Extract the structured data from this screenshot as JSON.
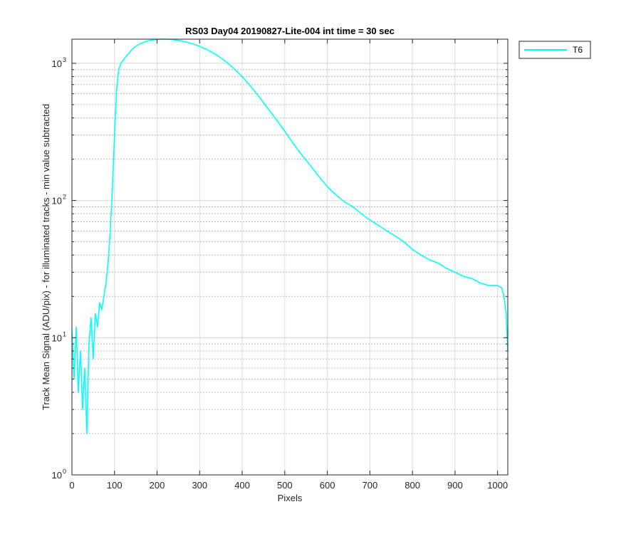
{
  "chart_data": {
    "type": "line",
    "title": "RS03 Day04 20190827-Lite-004 int time = 30 sec",
    "xlabel": "Pixels",
    "ylabel": "Track Mean Signal (ADU/pix) - for illuminated tracks - min value subtracted",
    "xlim": [
      0,
      1024
    ],
    "ylim": [
      1,
      1500
    ],
    "yscale": "log",
    "grid": true,
    "legend_position": "outside-top-right",
    "x_ticks": [
      "0",
      "100",
      "200",
      "300",
      "400",
      "500",
      "600",
      "700",
      "800",
      "900",
      "1000"
    ],
    "y_tick_bases": [
      "10",
      "10",
      "10",
      "10"
    ],
    "y_tick_exponents": [
      "0",
      "1",
      "2",
      "3"
    ],
    "series": [
      {
        "name": "T6",
        "color": "#00ffff",
        "x": [
          0,
          5,
          10,
          15,
          20,
          25,
          30,
          35,
          40,
          45,
          50,
          55,
          60,
          65,
          70,
          75,
          80,
          85,
          90,
          95,
          100,
          105,
          110,
          115,
          120,
          130,
          140,
          150,
          160,
          170,
          180,
          190,
          200,
          210,
          220,
          230,
          240,
          250,
          260,
          280,
          300,
          320,
          340,
          360,
          380,
          400,
          420,
          440,
          460,
          480,
          500,
          520,
          540,
          560,
          580,
          600,
          620,
          640,
          660,
          680,
          700,
          720,
          740,
          760,
          780,
          800,
          820,
          840,
          860,
          880,
          900,
          920,
          940,
          960,
          980,
          1000,
          1010,
          1015,
          1020,
          1024
        ],
        "y": [
          11,
          5,
          12,
          4,
          8,
          3,
          6,
          2,
          9,
          14,
          7,
          15,
          12,
          18,
          16,
          20,
          25,
          35,
          60,
          120,
          300,
          650,
          900,
          1000,
          1050,
          1150,
          1250,
          1330,
          1390,
          1430,
          1460,
          1480,
          1495,
          1500,
          1500,
          1495,
          1485,
          1470,
          1450,
          1400,
          1330,
          1250,
          1150,
          1040,
          920,
          800,
          680,
          570,
          470,
          390,
          320,
          260,
          215,
          180,
          150,
          126,
          110,
          98,
          90,
          80,
          72,
          66,
          60,
          55,
          50,
          44,
          40,
          37,
          35,
          32,
          30,
          28,
          27,
          25,
          24,
          24,
          23,
          20,
          15,
          8
        ]
      }
    ]
  }
}
